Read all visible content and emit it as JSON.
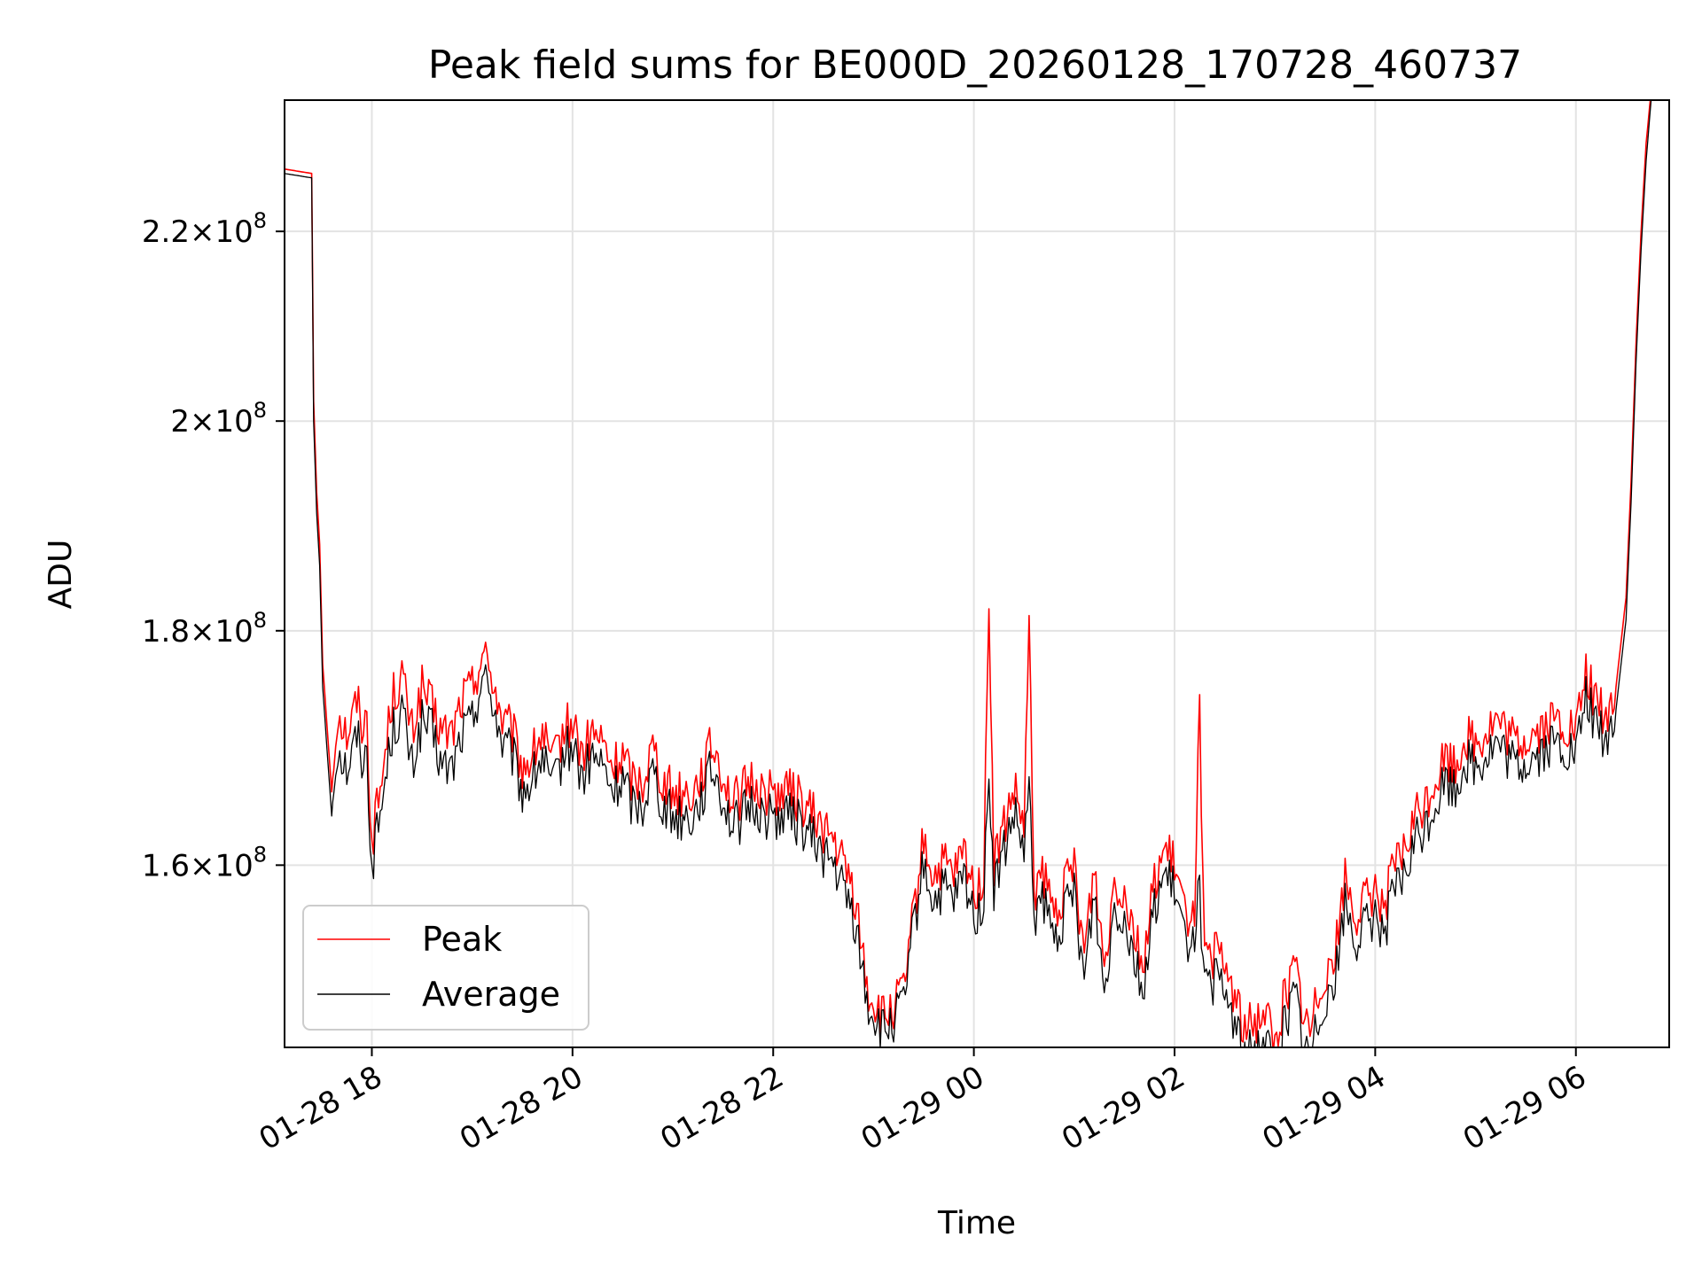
{
  "chart_data": {
    "type": "line",
    "title": "Peak field sums for BE000D_20260128_170728_460737",
    "xlabel": "Time",
    "ylabel": "ADU",
    "yscale": "log",
    "x_range_hours": [
      -0.87,
      12.93
    ],
    "ylim": [
      146000000,
      235000000
    ],
    "x_tick_labels": [
      "01-28 18",
      "01-28 20",
      "01-28 22",
      "01-29 00",
      "01-29 02",
      "01-29 04",
      "01-29 06"
    ],
    "x_tick_hours": [
      0,
      2,
      4,
      6,
      8,
      10,
      12
    ],
    "y_ticks": [
      {
        "value": 160000000,
        "mantissa": "1.6",
        "exp": "8"
      },
      {
        "value": 180000000,
        "mantissa": "1.8",
        "exp": "8"
      },
      {
        "value": 200000000,
        "mantissa": "2",
        "exp": "8"
      },
      {
        "value": 220000000,
        "mantissa": "2.2",
        "exp": "8"
      }
    ],
    "grid": true,
    "legend_position": "bottom-left",
    "series": [
      {
        "name": "Peak",
        "color": "#ff0000",
        "x": [
          -0.87,
          -0.6,
          -0.58,
          -0.55,
          -0.52,
          -0.49,
          -0.45,
          -0.4,
          -0.38,
          -0.34,
          -0.3,
          -0.25,
          -0.2,
          -0.15,
          -0.1,
          -0.05,
          0,
          0.1,
          0.2,
          0.3,
          0.4,
          0.5,
          0.6,
          0.7,
          0.8,
          0.9,
          1.0,
          1.1,
          1.2,
          1.3,
          1.4,
          1.5,
          1.6,
          1.7,
          1.8,
          1.9,
          2.0,
          2.1,
          2.2,
          2.3,
          2.4,
          2.5,
          2.6,
          2.7,
          2.8,
          2.9,
          3.0,
          3.2,
          3.4,
          3.6,
          3.8,
          3.9,
          4.0,
          4.2,
          4.4,
          4.6,
          4.8,
          4.95,
          5.1,
          5.3,
          5.4,
          5.5,
          5.6,
          5.7,
          5.8,
          5.9,
          6.0,
          6.1,
          6.15,
          6.2,
          6.3,
          6.4,
          6.5,
          6.55,
          6.6,
          6.7,
          6.8,
          6.9,
          7.0,
          7.1,
          7.2,
          7.3,
          7.4,
          7.5,
          7.6,
          7.7,
          7.8,
          7.9,
          8.0,
          8.1,
          8.2,
          8.25,
          8.3,
          8.4,
          8.5,
          8.6,
          8.7,
          8.8,
          8.9,
          9.0,
          9.1,
          9.2,
          9.3,
          9.35,
          9.4,
          9.5,
          9.6,
          9.7,
          9.8,
          9.9,
          10.0,
          10.1,
          10.2,
          10.3,
          10.4,
          10.5,
          10.6,
          10.7,
          10.8,
          10.9,
          11.0,
          11.2,
          11.4,
          11.6,
          11.8,
          12.0,
          12.1,
          12.3,
          12.4,
          12.45,
          12.5,
          12.55,
          12.6,
          12.65,
          12.7,
          12.75,
          12.8
        ],
        "values": [
          227000000.0,
          226500000.0,
          202000000.0,
          193000000.0,
          188000000.0,
          177000000.0,
          172000000.0,
          166000000.0,
          169000000.0,
          173000000.0,
          172000000.0,
          171000000.0,
          172000000.0,
          174000000.0,
          172000000.0,
          172000000.0,
          162000000.0,
          167000000.0,
          174000000.0,
          176000000.0,
          171000000.0,
          175000000.0,
          173000000.0,
          171000000.0,
          171000000.0,
          174000000.0,
          175000000.0,
          178000000.0,
          176000000.0,
          172000000.0,
          171000000.0,
          168000000.0,
          169000000.0,
          171000000.0,
          168000000.0,
          171000000.0,
          172000000.0,
          169000000.0,
          171000000.0,
          170000000.0,
          168000000.0,
          169000000.0,
          167000000.0,
          167000000.0,
          170000000.0,
          167000000.0,
          166000000.0,
          166000000.0,
          170000000.0,
          165000000.0,
          167000000.0,
          166000000.0,
          166000000.0,
          166000000.0,
          164000000.0,
          162000000.0,
          158000000.0,
          150000000.0,
          148000000.0,
          150000000.0,
          156000000.0,
          162000000.0,
          159000000.0,
          160000000.0,
          159000000.0,
          161000000.0,
          158000000.0,
          159000000.0,
          183000000.0,
          160000000.0,
          163000000.0,
          166000000.0,
          163000000.0,
          180000000.0,
          158000000.0,
          159000000.0,
          156000000.0,
          158000000.0,
          160000000.0,
          153000000.0,
          160000000.0,
          152000000.0,
          159000000.0,
          158000000.0,
          155000000.0,
          152000000.0,
          159000000.0,
          161000000.0,
          160000000.0,
          156000000.0,
          157000000.0,
          173000000.0,
          152000000.0,
          153000000.0,
          152000000.0,
          150000000.0,
          147000000.0,
          148000000.0,
          149000000.0,
          146000000.0,
          150000000.0,
          152000000.0,
          148000000.0,
          147000000.0,
          149000000.0,
          152000000.0,
          153000000.0,
          159000000.0,
          156000000.0,
          157000000.0,
          158000000.0,
          157000000.0,
          160000000.0,
          161000000.0,
          164000000.0,
          165000000.0,
          167000000.0,
          169000000.0,
          168000000.0,
          171000000.0,
          170000000.0,
          172000000.0,
          170000000.0,
          171000000.0,
          172000000.0,
          171000000.0,
          176000000.0,
          172000000.0,
          175000000.0,
          179000000.0,
          183000000.0,
          194000000.0,
          208000000.0,
          220000000.0,
          230000000.0,
          236000000.0,
          240000000.0
        ]
      },
      {
        "name": "Average",
        "color": "#000000",
        "x": [
          -0.87,
          -0.6,
          -0.58,
          -0.55,
          -0.52,
          -0.49,
          -0.45,
          -0.4,
          -0.38,
          -0.34,
          -0.3,
          -0.25,
          -0.2,
          -0.15,
          -0.1,
          -0.05,
          0,
          0.1,
          0.2,
          0.3,
          0.4,
          0.5,
          0.6,
          0.7,
          0.8,
          0.9,
          1.0,
          1.1,
          1.2,
          1.3,
          1.4,
          1.5,
          1.6,
          1.7,
          1.8,
          1.9,
          2.0,
          2.1,
          2.2,
          2.3,
          2.4,
          2.5,
          2.6,
          2.7,
          2.8,
          2.9,
          3.0,
          3.2,
          3.4,
          3.6,
          3.8,
          3.9,
          4.0,
          4.2,
          4.4,
          4.6,
          4.8,
          4.95,
          5.1,
          5.3,
          5.4,
          5.5,
          5.6,
          5.7,
          5.8,
          5.9,
          6.0,
          6.1,
          6.15,
          6.2,
          6.3,
          6.4,
          6.5,
          6.55,
          6.6,
          6.7,
          6.8,
          6.9,
          7.0,
          7.1,
          7.2,
          7.3,
          7.4,
          7.5,
          7.6,
          7.7,
          7.8,
          7.9,
          8.0,
          8.1,
          8.2,
          8.25,
          8.3,
          8.4,
          8.5,
          8.6,
          8.7,
          8.8,
          8.9,
          9.0,
          9.1,
          9.2,
          9.3,
          9.35,
          9.4,
          9.5,
          9.6,
          9.7,
          9.8,
          9.9,
          10.0,
          10.1,
          10.2,
          10.3,
          10.4,
          10.5,
          10.6,
          10.7,
          10.8,
          10.9,
          11.0,
          11.2,
          11.4,
          11.6,
          11.8,
          12.0,
          12.1,
          12.3,
          12.4,
          12.45,
          12.5,
          12.55,
          12.6,
          12.65,
          12.7,
          12.75,
          12.8
        ],
        "values": [
          226500000.0,
          226000000.0,
          200000000.0,
          191000000.0,
          186000000.0,
          175000000.0,
          170000000.0,
          164000000.0,
          167000000.0,
          170000000.0,
          169000000.0,
          168000000.0,
          169000000.0,
          171000000.0,
          169000000.0,
          169000000.0,
          160000000.0,
          165000000.0,
          171000000.0,
          173000000.0,
          168000000.0,
          172000000.0,
          171000000.0,
          168000000.0,
          168000000.0,
          171000000.0,
          172000000.0,
          176000000.0,
          174000000.0,
          170000000.0,
          169000000.0,
          166000000.0,
          167000000.0,
          169000000.0,
          166000000.0,
          169000000.0,
          170000000.0,
          167000000.0,
          169000000.0,
          168000000.0,
          166000000.0,
          167000000.0,
          165000000.0,
          165000000.0,
          168000000.0,
          165000000.0,
          164000000.0,
          164000000.0,
          168000000.0,
          163000000.0,
          165000000.0,
          164000000.0,
          164000000.0,
          164000000.0,
          162000000.0,
          160000000.0,
          156000000.0,
          149000000.0,
          147000000.0,
          149000000.0,
          155000000.0,
          160000000.0,
          157000000.0,
          158000000.0,
          157000000.0,
          159000000.0,
          156000000.0,
          157000000.0,
          168000000.0,
          158000000.0,
          161000000.0,
          164000000.0,
          161000000.0,
          166000000.0,
          156000000.0,
          157000000.0,
          154000000.0,
          156000000.0,
          158000000.0,
          151000000.0,
          158000000.0,
          150000000.0,
          157000000.0,
          156000000.0,
          153000000.0,
          150000000.0,
          157000000.0,
          159000000.0,
          158000000.0,
          154000000.0,
          155000000.0,
          158000000.0,
          150000000.0,
          151000000.0,
          150000000.0,
          148000000.0,
          145000000.0,
          146000000.0,
          147000000.0,
          144000000.0,
          148000000.0,
          150000000.0,
          146000000.0,
          145000000.0,
          147000000.0,
          150000000.0,
          151000000.0,
          157000000.0,
          154000000.0,
          155000000.0,
          156000000.0,
          155000000.0,
          158000000.0,
          159000000.0,
          162000000.0,
          163000000.0,
          165000000.0,
          167000000.0,
          166000000.0,
          169000000.0,
          168000000.0,
          170000000.0,
          168000000.0,
          169000000.0,
          170000000.0,
          169000000.0,
          174000000.0,
          170000000.0,
          173000000.0,
          177000000.0,
          181000000.0,
          192000000.0,
          206000000.0,
          218000000.0,
          228000000.0,
          235000000.0,
          240000000.0
        ]
      }
    ]
  }
}
